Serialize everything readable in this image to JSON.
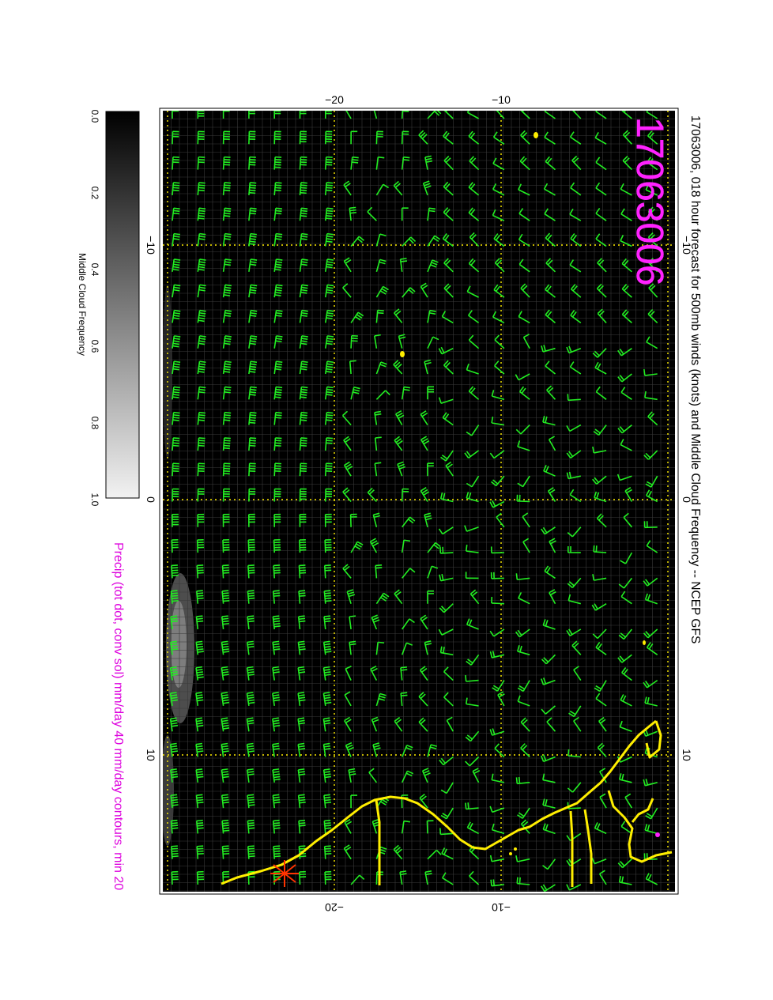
{
  "title": "17063006, 018 hour forecast for 500mb winds (knots) and Middle Cloud Frequency -- NCEP GFS",
  "stamp": "17063006",
  "precip_caption": "Precip (tot dot, conv sol) mm/day 40 mm/day contours, min 20",
  "colorbar": {
    "label": "Middle Cloud Frequency",
    "ticks": [
      "0.0",
      "0.2",
      "0.4",
      "0.6",
      "0.8",
      "1.0"
    ]
  },
  "axes": {
    "top_ticks": [
      "−20",
      "−10"
    ],
    "bottom_ticks": [
      "−20",
      "−10"
    ],
    "left_ticks": [
      "−10",
      "0",
      "10"
    ],
    "right_ticks": [
      "−10",
      "0",
      "10"
    ]
  },
  "colors": {
    "background": "#000000",
    "wind_barb": "#22ee22",
    "coastline": "#ffee00",
    "graticule": "#ffee00",
    "stamp": "#ff22ff",
    "caption": "#dd00dd"
  }
}
